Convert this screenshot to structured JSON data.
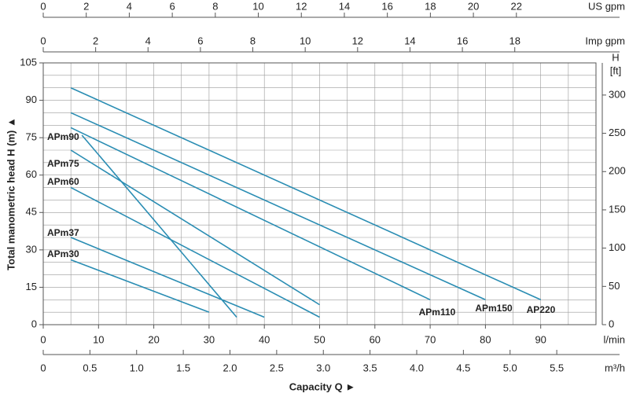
{
  "chart_data": {
    "type": "line",
    "ylabel": "Total manometric head H (m) ▲",
    "xlabel": "Capacity Q ►",
    "xunit": "l/min",
    "xlim": [
      0,
      100
    ],
    "xticks": [
      0,
      10,
      20,
      30,
      40,
      50,
      60,
      70,
      80,
      90
    ],
    "ylim": [
      0,
      105
    ],
    "yticks": [
      0,
      15,
      30,
      45,
      60,
      75,
      90,
      105
    ],
    "y2label": "H",
    "y2unit": "[ft]",
    "y2lim": [
      0,
      342
    ],
    "y2ticks": [
      0,
      50,
      100,
      150,
      200,
      250,
      300
    ],
    "top_axes": [
      {
        "label": "US gpm",
        "lim": [
          0,
          25.7
        ],
        "ticks": [
          0,
          2,
          4,
          6,
          8,
          10,
          12,
          14,
          16,
          18,
          20,
          22
        ]
      },
      {
        "label": "Imp gpm",
        "lim": [
          0,
          21.1
        ],
        "ticks": [
          0,
          2,
          4,
          6,
          8,
          10,
          12,
          14,
          16,
          18
        ]
      }
    ],
    "bottom_axis": {
      "label": "m³/h",
      "lim": [
        0,
        5.92
      ],
      "ticks": [
        0,
        0.5,
        {
          "value": 1,
          "label": "1.0"
        },
        1.5,
        {
          "value": 2,
          "label": "2.0"
        },
        2.5,
        {
          "value": 3,
          "label": "3.0"
        },
        3.5,
        {
          "value": 4,
          "label": "4.0"
        },
        4.5,
        {
          "value": 5,
          "label": "5.0"
        },
        5.5
      ]
    },
    "grid": true,
    "series": [
      {
        "name": "AP220",
        "color": "#2a8db3",
        "x": [
          5,
          90
        ],
        "values": [
          95,
          10
        ]
      },
      {
        "name": "APm150",
        "color": "#2a8db3",
        "x": [
          5,
          80
        ],
        "values": [
          85,
          10
        ]
      },
      {
        "name": "APm110",
        "color": "#2a8db3",
        "x": [
          5,
          70
        ],
        "values": [
          79,
          10
        ]
      },
      {
        "name": "APm90",
        "color": "#2a8db3",
        "x": [
          7,
          35
        ],
        "values": [
          76,
          3
        ]
      },
      {
        "name": "APm75",
        "color": "#2a8db3",
        "x": [
          5,
          50
        ],
        "values": [
          70,
          8
        ]
      },
      {
        "name": "APm60",
        "color": "#2a8db3",
        "x": [
          5,
          50
        ],
        "values": [
          55,
          3
        ]
      },
      {
        "name": "APm37",
        "color": "#2a8db3",
        "x": [
          5,
          40
        ],
        "values": [
          35,
          3
        ]
      },
      {
        "name": "APm30",
        "color": "#2a8db3",
        "x": [
          5,
          30
        ],
        "values": [
          26,
          5
        ]
      }
    ]
  }
}
